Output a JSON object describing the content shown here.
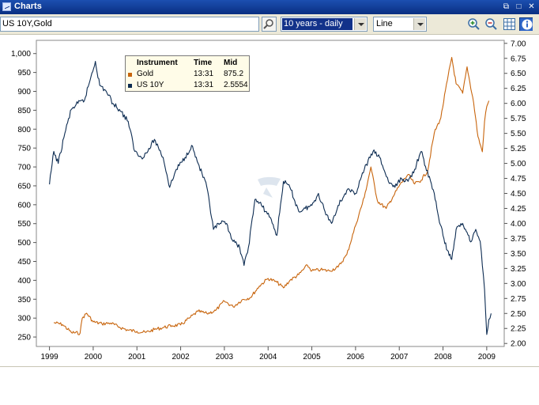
{
  "window": {
    "title": "Charts",
    "controls": [
      "⧉",
      "□",
      "✕"
    ]
  },
  "toolbar": {
    "instrument_value": "US 10Y,Gold",
    "period_value": "10 years - daily",
    "chart_type_value": "Line",
    "icons": [
      "zoom-in-icon",
      "zoom-out-icon",
      "grid-icon",
      "info-icon"
    ]
  },
  "legend": {
    "headers": {
      "instrument": "Instrument",
      "time": "Time",
      "mid": "Mid"
    },
    "rows": [
      {
        "name": "Gold",
        "time": "13:31",
        "mid": "875.2",
        "color": "#c8650d"
      },
      {
        "name": "US 10Y",
        "time": "13:31",
        "mid": "2.5554",
        "color": "#0d2c52"
      }
    ]
  },
  "chart_data": {
    "type": "line",
    "x_ticks": [
      "1999",
      "2000",
      "2001",
      "2002",
      "2003",
      "2004",
      "2005",
      "2006",
      "2007",
      "2008",
      "2009"
    ],
    "y_left_ticks": [
      "1,000",
      "950",
      "900",
      "850",
      "800",
      "750",
      "700",
      "650",
      "600",
      "550",
      "500",
      "450",
      "400",
      "350",
      "300",
      "250"
    ],
    "y_right_ticks": [
      "7.00",
      "6.75",
      "6.50",
      "6.25",
      "6.00",
      "5.75",
      "5.50",
      "5.25",
      "5.00",
      "4.75",
      "4.50",
      "4.25",
      "4.00",
      "3.75",
      "3.50",
      "3.25",
      "3.00",
      "2.75",
      "2.50",
      "2.25",
      "2.00"
    ],
    "y_left_range": [
      225,
      1035
    ],
    "y_right_range": [
      1.95,
      7.05
    ],
    "x_range": [
      1998.7,
      2009.4
    ],
    "series": [
      {
        "name": "Gold",
        "axis": "left",
        "color": "#c8650d",
        "points": [
          [
            1999.1,
            288
          ],
          [
            1999.3,
            283
          ],
          [
            1999.5,
            262
          ],
          [
            1999.7,
            260
          ],
          [
            1999.75,
            300
          ],
          [
            1999.85,
            313
          ],
          [
            2000.0,
            290
          ],
          [
            2000.2,
            285
          ],
          [
            2000.4,
            287
          ],
          [
            2000.6,
            276
          ],
          [
            2000.8,
            268
          ],
          [
            2001.0,
            265
          ],
          [
            2001.2,
            262
          ],
          [
            2001.4,
            270
          ],
          [
            2001.6,
            275
          ],
          [
            2001.8,
            280
          ],
          [
            2002.0,
            282
          ],
          [
            2002.2,
            300
          ],
          [
            2002.4,
            318
          ],
          [
            2002.6,
            312
          ],
          [
            2002.8,
            320
          ],
          [
            2003.0,
            345
          ],
          [
            2003.2,
            330
          ],
          [
            2003.4,
            348
          ],
          [
            2003.6,
            355
          ],
          [
            2003.8,
            385
          ],
          [
            2004.0,
            405
          ],
          [
            2004.2,
            395
          ],
          [
            2004.35,
            380
          ],
          [
            2004.5,
            400
          ],
          [
            2004.7,
            415
          ],
          [
            2004.9,
            440
          ],
          [
            2005.0,
            425
          ],
          [
            2005.2,
            428
          ],
          [
            2005.4,
            425
          ],
          [
            2005.6,
            435
          ],
          [
            2005.8,
            468
          ],
          [
            2006.0,
            545
          ],
          [
            2006.2,
            620
          ],
          [
            2006.35,
            700
          ],
          [
            2006.5,
            610
          ],
          [
            2006.7,
            590
          ],
          [
            2006.85,
            620
          ],
          [
            2007.0,
            650
          ],
          [
            2007.2,
            680
          ],
          [
            2007.35,
            655
          ],
          [
            2007.5,
            665
          ],
          [
            2007.65,
            690
          ],
          [
            2007.8,
            790
          ],
          [
            2007.95,
            830
          ],
          [
            2008.1,
            930
          ],
          [
            2008.2,
            990
          ],
          [
            2008.3,
            920
          ],
          [
            2008.45,
            895
          ],
          [
            2008.55,
            965
          ],
          [
            2008.7,
            870
          ],
          [
            2008.8,
            780
          ],
          [
            2008.9,
            740
          ],
          [
            2008.95,
            820
          ],
          [
            2009.0,
            860
          ],
          [
            2009.05,
            875
          ]
        ]
      },
      {
        "name": "US 10Y",
        "axis": "right",
        "color": "#0d2c52",
        "points": [
          [
            1999.0,
            4.65
          ],
          [
            1999.1,
            5.2
          ],
          [
            1999.2,
            5.0
          ],
          [
            1999.35,
            5.5
          ],
          [
            1999.5,
            5.9
          ],
          [
            1999.65,
            6.0
          ],
          [
            1999.8,
            6.05
          ],
          [
            1999.95,
            6.45
          ],
          [
            2000.05,
            6.7
          ],
          [
            2000.15,
            6.3
          ],
          [
            2000.3,
            6.2
          ],
          [
            2000.45,
            6.0
          ],
          [
            2000.6,
            5.9
          ],
          [
            2000.8,
            5.7
          ],
          [
            2000.95,
            5.2
          ],
          [
            2001.1,
            5.1
          ],
          [
            2001.25,
            5.2
          ],
          [
            2001.4,
            5.4
          ],
          [
            2001.6,
            5.1
          ],
          [
            2001.75,
            4.6
          ],
          [
            2001.9,
            4.9
          ],
          [
            2002.1,
            5.1
          ],
          [
            2002.25,
            5.3
          ],
          [
            2002.4,
            5.0
          ],
          [
            2002.6,
            4.6
          ],
          [
            2002.75,
            3.9
          ],
          [
            2002.9,
            4.0
          ],
          [
            2003.05,
            4.0
          ],
          [
            2003.2,
            3.7
          ],
          [
            2003.35,
            3.6
          ],
          [
            2003.45,
            3.3
          ],
          [
            2003.55,
            3.6
          ],
          [
            2003.7,
            4.4
          ],
          [
            2003.85,
            4.3
          ],
          [
            2004.05,
            4.1
          ],
          [
            2004.2,
            3.8
          ],
          [
            2004.35,
            4.7
          ],
          [
            2004.5,
            4.6
          ],
          [
            2004.7,
            4.2
          ],
          [
            2004.85,
            4.25
          ],
          [
            2005.0,
            4.3
          ],
          [
            2005.15,
            4.5
          ],
          [
            2005.3,
            4.2
          ],
          [
            2005.45,
            4.0
          ],
          [
            2005.6,
            4.3
          ],
          [
            2005.8,
            4.55
          ],
          [
            2006.0,
            4.5
          ],
          [
            2006.2,
            4.9
          ],
          [
            2006.4,
            5.2
          ],
          [
            2006.55,
            5.1
          ],
          [
            2006.75,
            4.7
          ],
          [
            2006.9,
            4.6
          ],
          [
            2007.05,
            4.75
          ],
          [
            2007.2,
            4.7
          ],
          [
            2007.35,
            4.9
          ],
          [
            2007.5,
            5.2
          ],
          [
            2007.6,
            4.95
          ],
          [
            2007.8,
            4.5
          ],
          [
            2007.9,
            4.1
          ],
          [
            2008.0,
            3.8
          ],
          [
            2008.1,
            3.55
          ],
          [
            2008.2,
            3.4
          ],
          [
            2008.3,
            3.9
          ],
          [
            2008.45,
            4.0
          ],
          [
            2008.55,
            3.85
          ],
          [
            2008.65,
            3.7
          ],
          [
            2008.75,
            3.9
          ],
          [
            2008.85,
            3.7
          ],
          [
            2008.9,
            3.3
          ],
          [
            2008.95,
            2.9
          ],
          [
            2009.0,
            2.15
          ],
          [
            2009.05,
            2.4
          ],
          [
            2009.1,
            2.5
          ]
        ]
      }
    ]
  }
}
